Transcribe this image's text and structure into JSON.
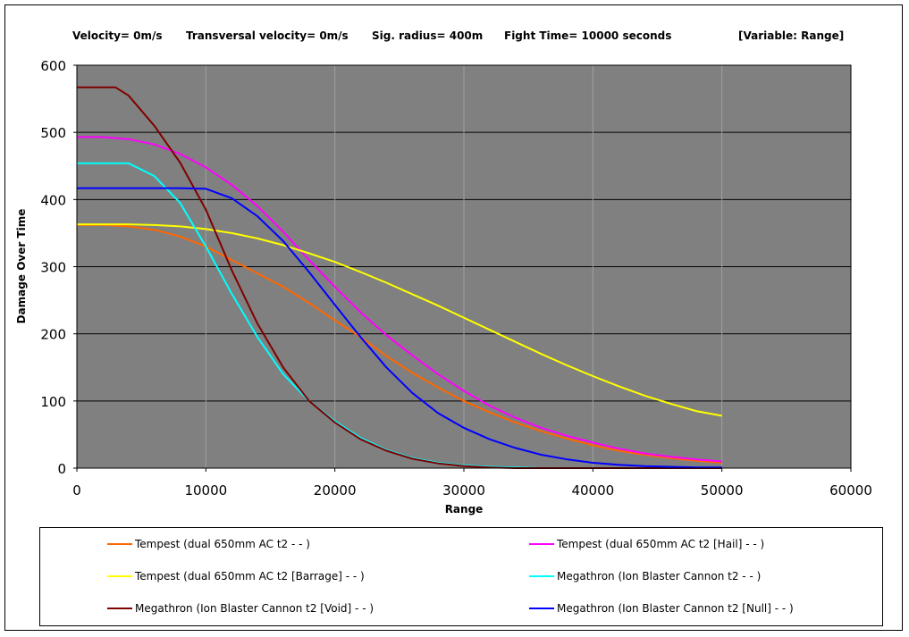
{
  "subtitle": {
    "velocity": "Velocity= 0m/s",
    "transversal": "Transversal velocity= 0m/s",
    "sig_radius": "Sig. radius= 400m",
    "fight_time": "Fight Time= 10000 seconds",
    "variable": "[Variable: Range]"
  },
  "chart_data": {
    "type": "line",
    "xlabel": "Range",
    "ylabel": "Damage Over Time",
    "xlim": [
      0,
      60000
    ],
    "ylim": [
      0,
      600
    ],
    "x_ticks": [
      0,
      10000,
      20000,
      30000,
      40000,
      50000,
      60000
    ],
    "y_ticks": [
      0,
      100,
      200,
      300,
      400,
      500,
      600
    ],
    "grid": "both",
    "plot_background": "#808080",
    "legend_position": "bottom",
    "series": [
      {
        "name": "Tempest (dual 650mm AC t2 - - )",
        "color": "#ff6600",
        "x": [
          0,
          2000,
          4000,
          6000,
          8000,
          10000,
          12000,
          14000,
          16000,
          18000,
          20000,
          22000,
          24000,
          26000,
          28000,
          30000,
          32000,
          34000,
          36000,
          38000,
          40000,
          42000,
          44000,
          46000,
          48000,
          50000
        ],
        "y": [
          362,
          362,
          360,
          355,
          345,
          330,
          310,
          290,
          270,
          246,
          220,
          195,
          167,
          142,
          120,
          100,
          83,
          68,
          55,
          44,
          34,
          26,
          20,
          15,
          11,
          8
        ]
      },
      {
        "name": "Tempest (dual 650mm AC t2 [Hail] - - )",
        "color": "#ff00ff",
        "x": [
          0,
          2000,
          4000,
          6000,
          8000,
          10000,
          12000,
          14000,
          16000,
          18000,
          20000,
          22000,
          24000,
          26000,
          28000,
          30000,
          32000,
          34000,
          36000,
          38000,
          40000,
          42000,
          44000,
          46000,
          48000,
          50000
        ],
        "y": [
          493,
          493,
          490,
          482,
          468,
          448,
          422,
          390,
          352,
          310,
          270,
          232,
          198,
          168,
          140,
          115,
          93,
          75,
          60,
          48,
          38,
          29,
          22,
          17,
          13,
          10
        ]
      },
      {
        "name": "Tempest (dual 650mm AC t2 [Barrage] - - )",
        "color": "#ffff00",
        "x": [
          0,
          2000,
          4000,
          6000,
          8000,
          10000,
          12000,
          14000,
          16000,
          18000,
          20000,
          22000,
          24000,
          26000,
          28000,
          30000,
          32000,
          34000,
          36000,
          38000,
          40000,
          42000,
          44000,
          46000,
          48000,
          50000
        ],
        "y": [
          363,
          363,
          363,
          362,
          360,
          356,
          350,
          342,
          332,
          320,
          307,
          292,
          276,
          259,
          242,
          224,
          206,
          188,
          170,
          153,
          137,
          122,
          108,
          96,
          85,
          78
        ]
      },
      {
        "name": "Megathron (Ion Blaster Cannon t2 - - )",
        "color": "#00ffff",
        "x": [
          0,
          2000,
          4000,
          6000,
          8000,
          10000,
          12000,
          14000,
          16000,
          18000,
          20000,
          22000,
          24000,
          26000,
          28000,
          30000,
          32000,
          34000,
          36000,
          38000,
          40000,
          42000,
          44000,
          46000,
          48000,
          50000
        ],
        "y": [
          454,
          454,
          454,
          435,
          395,
          330,
          260,
          195,
          140,
          100,
          70,
          45,
          27,
          15,
          8,
          4,
          2,
          1,
          0,
          0,
          0,
          0,
          0,
          0,
          0,
          0
        ]
      },
      {
        "name": "Megathron (Ion Blaster Cannon t2 [Void] - - )",
        "color": "#800000",
        "x": [
          0,
          2000,
          3000,
          4000,
          6000,
          8000,
          10000,
          12000,
          14000,
          16000,
          18000,
          20000,
          22000,
          24000,
          26000,
          28000,
          30000,
          32000,
          34000,
          36000,
          38000,
          40000,
          42000,
          44000,
          46000,
          48000,
          50000
        ],
        "y": [
          567,
          567,
          567,
          555,
          510,
          455,
          385,
          295,
          215,
          150,
          100,
          68,
          43,
          26,
          14,
          7,
          3,
          1,
          0,
          0,
          0,
          0,
          0,
          0,
          0,
          0,
          0
        ]
      },
      {
        "name": "Megathron (Ion Blaster Cannon t2 [Null] - - )",
        "color": "#0000ff",
        "x": [
          0,
          2000,
          4000,
          6000,
          8000,
          10000,
          12000,
          14000,
          16000,
          18000,
          20000,
          22000,
          24000,
          26000,
          28000,
          30000,
          32000,
          34000,
          36000,
          38000,
          40000,
          42000,
          44000,
          46000,
          48000,
          50000
        ],
        "y": [
          417,
          417,
          417,
          417,
          417,
          416,
          402,
          375,
          338,
          292,
          243,
          195,
          150,
          112,
          82,
          60,
          43,
          30,
          20,
          13,
          8,
          5,
          3,
          2,
          1,
          1
        ]
      }
    ]
  }
}
